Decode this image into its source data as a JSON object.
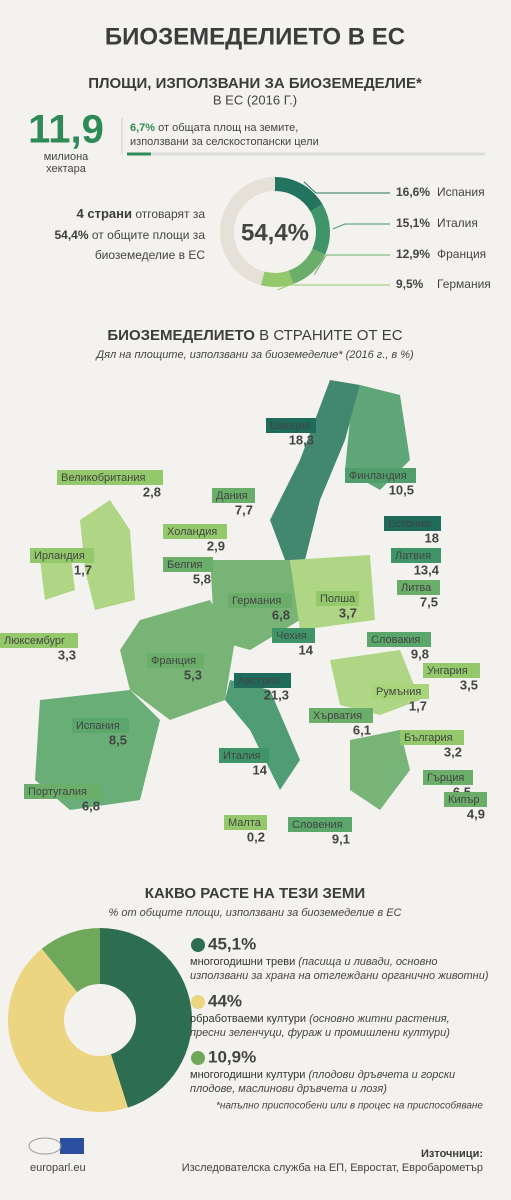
{
  "header": {
    "title": "БИОЗЕМЕДЕЛИЕТО В ЕС"
  },
  "areas": {
    "title": "ПЛОЩИ, ИЗПОЛЗВАНИ ЗА БИОЗЕМЕДЕЛИЕ*",
    "subtitle": "В ЕС (2016 Г.)",
    "total": "11,9",
    "unit_1": "милиона",
    "unit_2": "хектара",
    "share": {
      "value": 6.7,
      "label": "6,7%",
      "text_1": "от общата площ на земите,",
      "text_2": "използвани за селскостопански цели"
    },
    "top": {
      "bold_1": "4 страни",
      "text_1": "отговарят за",
      "bold_2": "54,4%",
      "text_2": "от общите площи за",
      "text_3": "биоземеделие в ЕС",
      "center": "54,4%"
    },
    "countries": [
      {
        "value": 16.6,
        "label": "16,6%",
        "name": "Испания",
        "color": "#22745f"
      },
      {
        "value": 15.1,
        "label": "15,1%",
        "name": "Италия",
        "color": "#3f9468"
      },
      {
        "value": 12.9,
        "label": "12,9%",
        "name": "Франция",
        "color": "#6aae6a"
      },
      {
        "value": 9.5,
        "label": "9,5%",
        "name": "Германия",
        "color": "#93c96a"
      }
    ]
  },
  "map": {
    "title_1": "БИОЗЕМЕДЕЛИЕТО",
    "title_2": "В СТРАНИТЕ ОТ ЕС",
    "subtitle": "Дял на площите, използвани за биоземеделие* (2016 г., в %)",
    "countries": [
      {
        "name": "Великобритания",
        "value": "2,8",
        "color": "#93c96a"
      },
      {
        "name": "Дания",
        "value": "7,7",
        "color": "#6aae6a"
      },
      {
        "name": "Холандия",
        "value": "2,9",
        "color": "#93c96a"
      },
      {
        "name": "Ирландия",
        "value": "1,7",
        "color": "#93c96a"
      },
      {
        "name": "Белгия",
        "value": "5,8",
        "color": "#6aae6a"
      },
      {
        "name": "Швеция",
        "value": "18,3",
        "color": "#1d6b58"
      },
      {
        "name": "Финландия",
        "value": "10,5",
        "color": "#4f9e6c"
      },
      {
        "name": "Естония",
        "value": "18",
        "color": "#1d6b58"
      },
      {
        "name": "Латвия",
        "value": "13,4",
        "color": "#3f9468"
      },
      {
        "name": "Литва",
        "value": "7,5",
        "color": "#6aae6a"
      },
      {
        "name": "Германия",
        "value": "6,8",
        "color": "#6aae6a"
      },
      {
        "name": "Полша",
        "value": "3,7",
        "color": "#93c96a"
      },
      {
        "name": "Чехия",
        "value": "14",
        "color": "#3f9468"
      },
      {
        "name": "Словакия",
        "value": "9,8",
        "color": "#5aa66b"
      },
      {
        "name": "Люксембург",
        "value": "3,3",
        "color": "#93c96a"
      },
      {
        "name": "Франция",
        "value": "5,3",
        "color": "#6aae6a"
      },
      {
        "name": "Австрия",
        "value": "21,3",
        "color": "#1d6b58"
      },
      {
        "name": "Унгария",
        "value": "3,5",
        "color": "#93c96a"
      },
      {
        "name": "Румъния",
        "value": "1,7",
        "color": "#a8d47a"
      },
      {
        "name": "Испания",
        "value": "8,5",
        "color": "#5aa66b"
      },
      {
        "name": "Хърватия",
        "value": "6,1",
        "color": "#6aae6a"
      },
      {
        "name": "България",
        "value": "3,2",
        "color": "#93c96a"
      },
      {
        "name": "Италия",
        "value": "14",
        "color": "#3f9468"
      },
      {
        "name": "Гърция",
        "value": "6,5",
        "color": "#6aae6a"
      },
      {
        "name": "Португалия",
        "value": "6,8",
        "color": "#6aae6a"
      },
      {
        "name": "Кипър",
        "value": "4,9",
        "color": "#6aae6a"
      },
      {
        "name": "Малта",
        "value": "0,2",
        "color": "#93c96a"
      },
      {
        "name": "Словения",
        "value": "9,1",
        "color": "#5aa66b"
      }
    ]
  },
  "crops": {
    "title": "КАКВО РАСТЕ НА ТЕЗИ ЗЕМИ",
    "subtitle": "% от общите площи, използвани за биоземеделие в ЕС",
    "items": [
      {
        "value": 45.1,
        "label": "45,1%",
        "color": "#2c6e4f",
        "name": "многогодишни треви",
        "desc_1": "(пасища и ливади, основно",
        "desc_2": "използвани за храна на отглеждани органично животни)"
      },
      {
        "value": 44,
        "label": "44%",
        "color": "#ecd580",
        "name": "обработваеми култури",
        "desc_1": "(основно житни растения,",
        "desc_2": "пресни зеленчуци, фураж и промишлени култури)"
      },
      {
        "value": 10.9,
        "label": "10,9%",
        "color": "#6fa85a",
        "name": "многогодишни култури",
        "desc_1": "(плодови дръвчета и горски",
        "desc_2": "плодове, маслинови дръвчета и лозя)"
      }
    ]
  },
  "footer": {
    "note": "*напълно приспособени или в процес на приспособяване",
    "site": "europarl.eu",
    "sources_title": "Източници:",
    "sources": "Изследователска служба на ЕП, Евростат, Евробарометър"
  }
}
